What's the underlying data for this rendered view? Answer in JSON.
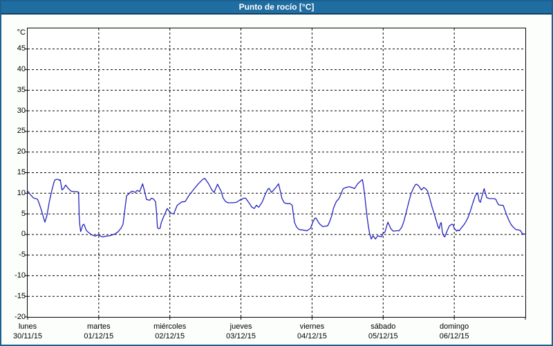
{
  "window": {
    "title": "Punto de rocío [°C]"
  },
  "colors": {
    "titlebar_bg": "#1f6da1",
    "titlebar_border": "#113c5f",
    "window_border": "#1b6090",
    "window_bg": "#fbfefa",
    "plot_bg": "#ffffff",
    "grid": "#000000",
    "line": "#2222bd",
    "title_text": "#ffffff",
    "axis_text": "#000000"
  },
  "chart_data": {
    "type": "line",
    "title": "Punto de rocío [°C]",
    "ylabel": "°C",
    "xlabel": "",
    "ylim": [
      -20,
      50
    ],
    "xlim": [
      0,
      168
    ],
    "x_unit": "hours since 30/11/15 00:00",
    "grid": "dashed",
    "legend": "none",
    "yticks": [
      45,
      40,
      35,
      30,
      25,
      20,
      15,
      10,
      5,
      0,
      -5,
      -10,
      -15,
      -20
    ],
    "x_day_ticks": [
      {
        "day": "lunes",
        "date": "30/11/15"
      },
      {
        "day": "martes",
        "date": "01/12/15"
      },
      {
        "day": "miércoles",
        "date": "02/12/15"
      },
      {
        "day": "jueves",
        "date": "03/12/15"
      },
      {
        "day": "viernes",
        "date": "04/12/15"
      },
      {
        "day": "sábado",
        "date": "05/12/15"
      },
      {
        "day": "domingo",
        "date": "06/12/15"
      }
    ],
    "series": [
      {
        "name": "Punto de rocío",
        "color": "#2222bd",
        "points": [
          [
            0,
            10.5
          ],
          [
            0.5,
            10.1
          ],
          [
            1,
            9.6
          ],
          [
            1.9,
            8.9
          ],
          [
            2.6,
            8.7
          ],
          [
            3.3,
            8.6
          ],
          [
            3.8,
            7.7
          ],
          [
            4.6,
            6
          ],
          [
            5.4,
            4
          ],
          [
            5.8,
            3
          ],
          [
            6.5,
            4.6
          ],
          [
            7.3,
            7.9
          ],
          [
            8.1,
            10.5
          ],
          [
            8.9,
            12.7
          ],
          [
            9.3,
            13.3
          ],
          [
            10.2,
            13.4
          ],
          [
            10.8,
            13.1
          ],
          [
            11,
            13.3
          ],
          [
            11.6,
            10.8
          ],
          [
            12.2,
            11.2
          ],
          [
            12.8,
            12
          ],
          [
            13.9,
            11
          ],
          [
            14.7,
            10.5
          ],
          [
            15.5,
            10.4
          ],
          [
            16.4,
            10.4
          ],
          [
            17.2,
            10.3
          ],
          [
            17.4,
            4.3
          ],
          [
            17.6,
            2.4
          ],
          [
            17.9,
            0.7
          ],
          [
            18.6,
            2.3
          ],
          [
            19,
            2.5
          ],
          [
            19.8,
            1
          ],
          [
            20.5,
            0.5
          ],
          [
            21.7,
            -0.1
          ],
          [
            22.9,
            -0.4
          ],
          [
            23.6,
            -0.1
          ],
          [
            24,
            -0.2
          ],
          [
            25.3,
            -0.6
          ],
          [
            26.5,
            -0.4
          ],
          [
            27.8,
            -0.3
          ],
          [
            29.4,
            0.1
          ],
          [
            30.6,
            0.7
          ],
          [
            31.5,
            1.5
          ],
          [
            32.2,
            2.5
          ],
          [
            32.8,
            6
          ],
          [
            33.4,
            9.4
          ],
          [
            34.2,
            9.9
          ],
          [
            34.9,
            10.4
          ],
          [
            35.5,
            10.5
          ],
          [
            36.3,
            10.2
          ],
          [
            37,
            10.7
          ],
          [
            37.8,
            10.4
          ],
          [
            38.8,
            12.3
          ],
          [
            39.5,
            10.4
          ],
          [
            40.1,
            8.5
          ],
          [
            41.2,
            8.3
          ],
          [
            41.8,
            8.8
          ],
          [
            42.5,
            8.6
          ],
          [
            43.2,
            7.9
          ],
          [
            43.5,
            5.4
          ],
          [
            43.8,
            1.8
          ],
          [
            44.1,
            1.4
          ],
          [
            44.7,
            1.5
          ],
          [
            45.1,
            2.9
          ],
          [
            45.9,
            4.3
          ],
          [
            47.1,
            6.3
          ],
          [
            48,
            5.4
          ],
          [
            48.7,
            5.1
          ],
          [
            49.3,
            5
          ],
          [
            50.5,
            7.1
          ],
          [
            52,
            7.9
          ],
          [
            53.2,
            8
          ],
          [
            54.4,
            9.4
          ],
          [
            55.9,
            10.8
          ],
          [
            57.5,
            12.2
          ],
          [
            59,
            13.3
          ],
          [
            59.8,
            13.6
          ],
          [
            61,
            12.4
          ],
          [
            62.2,
            10.8
          ],
          [
            62.9,
            10.2
          ],
          [
            64.1,
            12.2
          ],
          [
            65.3,
            10.5
          ],
          [
            66,
            8.8
          ],
          [
            66.8,
            8
          ],
          [
            67.6,
            7.7
          ],
          [
            69,
            7.7
          ],
          [
            70.5,
            7.8
          ],
          [
            71.5,
            8.3
          ],
          [
            72.3,
            8.5
          ],
          [
            72.9,
            8.8
          ],
          [
            73.6,
            8.8
          ],
          [
            75,
            7.4
          ],
          [
            75.7,
            6.6
          ],
          [
            76.5,
            6.3
          ],
          [
            77.2,
            7.1
          ],
          [
            78,
            6.6
          ],
          [
            79.2,
            7.9
          ],
          [
            80.3,
            9.9
          ],
          [
            81.1,
            11
          ],
          [
            81.5,
            11.2
          ],
          [
            82.3,
            10.2
          ],
          [
            83.8,
            11.4
          ],
          [
            84.7,
            12.3
          ],
          [
            85.4,
            10.2
          ],
          [
            85.8,
            8.8
          ],
          [
            86.6,
            7.7
          ],
          [
            87.5,
            7.5
          ],
          [
            88.6,
            7.5
          ],
          [
            89.3,
            7.1
          ],
          [
            89.7,
            4.9
          ],
          [
            90.1,
            2.9
          ],
          [
            90.8,
            1.8
          ],
          [
            91.6,
            1.2
          ],
          [
            92.8,
            1.1
          ],
          [
            94.3,
            0.9
          ],
          [
            95.5,
            1.5
          ],
          [
            96,
            2.5
          ],
          [
            96.4,
            3.2
          ],
          [
            96.9,
            3.9
          ],
          [
            97.3,
            4
          ],
          [
            98.5,
            2.6
          ],
          [
            99.6,
            1.9
          ],
          [
            100.5,
            2
          ],
          [
            101.3,
            2.1
          ],
          [
            102,
            3.2
          ],
          [
            102.8,
            4.9
          ],
          [
            103.2,
            6.3
          ],
          [
            104,
            7.7
          ],
          [
            104.4,
            8.2
          ],
          [
            105,
            8.6
          ],
          [
            105.7,
            9.7
          ],
          [
            106.5,
            11.1
          ],
          [
            107.5,
            11.4
          ],
          [
            108.6,
            11.6
          ],
          [
            109.8,
            11.3
          ],
          [
            110.3,
            11.1
          ],
          [
            111.4,
            12.3
          ],
          [
            112.6,
            13.1
          ],
          [
            113,
            13.3
          ],
          [
            113.4,
            11.6
          ],
          [
            113.8,
            9.4
          ],
          [
            114.2,
            6.7
          ],
          [
            114.6,
            4.2
          ],
          [
            115,
            2
          ],
          [
            115.4,
            0.3
          ],
          [
            116,
            -1.1
          ],
          [
            116.6,
            -0.3
          ],
          [
            117.4,
            -1.1
          ],
          [
            118.2,
            -0.3
          ],
          [
            118.9,
            -0.5
          ],
          [
            119.5,
            -0.5
          ],
          [
            120,
            0.3
          ],
          [
            120.6,
            0.6
          ],
          [
            121.6,
            3
          ],
          [
            122.6,
            1.4
          ],
          [
            123.4,
            0.8
          ],
          [
            124.4,
            0.9
          ],
          [
            125.4,
            0.9
          ],
          [
            126.3,
            1.8
          ],
          [
            127,
            3.2
          ],
          [
            127.8,
            5.4
          ],
          [
            128.6,
            7.7
          ],
          [
            129.4,
            9.9
          ],
          [
            130.2,
            11.2
          ],
          [
            130.9,
            12.1
          ],
          [
            131.3,
            12.2
          ],
          [
            132,
            11.8
          ],
          [
            132.9,
            10.8
          ],
          [
            133.7,
            11.4
          ],
          [
            134.5,
            11
          ],
          [
            135,
            10.5
          ],
          [
            135.7,
            8.8
          ],
          [
            136.5,
            6.7
          ],
          [
            137.3,
            4.9
          ],
          [
            138.1,
            2.9
          ],
          [
            138.5,
            1.9
          ],
          [
            138.9,
            1.4
          ],
          [
            139.3,
            2.6
          ],
          [
            139.6,
            2.9
          ],
          [
            140,
            0.5
          ],
          [
            140.4,
            -0.3
          ],
          [
            140.8,
            -0.6
          ],
          [
            141.6,
            0.9
          ],
          [
            142.3,
            2
          ],
          [
            143.1,
            2.5
          ],
          [
            143.6,
            2.4
          ],
          [
            144,
            1.5
          ],
          [
            144.4,
            1.2
          ],
          [
            144.8,
            0.8
          ],
          [
            145.2,
            1.1
          ],
          [
            145.7,
            0.9
          ],
          [
            146.4,
            1.6
          ],
          [
            147.2,
            2.3
          ],
          [
            148,
            3.2
          ],
          [
            148.7,
            4.2
          ],
          [
            149.5,
            5.8
          ],
          [
            150.3,
            7.7
          ],
          [
            151.1,
            9.4
          ],
          [
            151.9,
            10.1
          ],
          [
            152.4,
            8.2
          ],
          [
            152.8,
            7.8
          ],
          [
            153.4,
            9.4
          ],
          [
            154.1,
            11.1
          ],
          [
            154.6,
            9.8
          ],
          [
            155,
            8.9
          ],
          [
            155.9,
            8.7
          ],
          [
            157,
            8.7
          ],
          [
            158,
            8.6
          ],
          [
            158.4,
            7.9
          ],
          [
            159,
            7.2
          ],
          [
            160,
            7.1
          ],
          [
            160.5,
            7.1
          ],
          [
            160.9,
            6.3
          ],
          [
            161.6,
            4.9
          ],
          [
            162.4,
            3.5
          ],
          [
            163.2,
            2.4
          ],
          [
            164,
            1.7
          ],
          [
            164.8,
            1.2
          ],
          [
            165.8,
            1.1
          ],
          [
            166.4,
            0.9
          ],
          [
            166.9,
            0.3
          ],
          [
            167.5,
            0.1
          ],
          [
            168,
            0.1
          ]
        ]
      }
    ]
  }
}
